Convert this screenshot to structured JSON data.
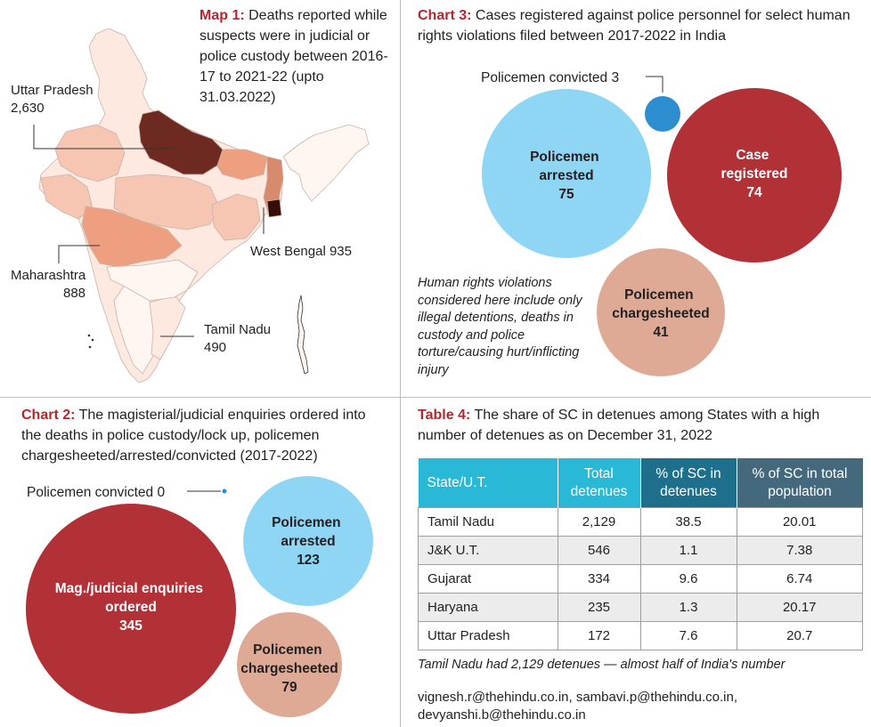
{
  "colors": {
    "accent_red": "#b5272d",
    "bubble_dark_red": "#b23137",
    "bubble_light_blue": "#8fd6f5",
    "bubble_salmon": "#deaa95",
    "bubble_blue": "#2d8ecf",
    "map_darkest": "#6e2a20",
    "map_dark": "#ee9f7f",
    "map_mid": "#f6c6b2",
    "map_light": "#fde9e0",
    "map_lightest": "#fff6f2",
    "table_header_cyan": "#29b8d6",
    "table_header_teal": "#1d6f8c",
    "table_header_slate": "#44697c"
  },
  "map1": {
    "lead": "Map 1:",
    "text": "Deaths reported while suspects were in judicial or police custody between 2016-17 to 2021-22 (upto 31.03.2022)",
    "labels": {
      "up_name": "Uttar Pradesh",
      "up_value": "2,630",
      "wb": "West Bengal 935",
      "mh_name": "Maharashtra",
      "mh_value": "888",
      "tn_name": "Tamil Nadu",
      "tn_value": "490"
    },
    "map_icon": "india-map-icon"
  },
  "chart3": {
    "lead": "Chart 3:",
    "text": "Cases registered against police personnel for select human rights violations filed between 2017-2022 in India",
    "note": "Human rights violations considered here include only illegal detentions, deaths in custody and police torture/causing hurt/inflicting injury"
  },
  "chart2": {
    "lead": "Chart 2:",
    "text": "The magisterial/judicial enquiries ordered into the deaths in police custody/lock up, policemen chargesheeted/arrested/convicted (2017-2022)"
  },
  "table4": {
    "lead": "Table 4:",
    "text": "The share of SC in detenues among States with a high number of detenues as on December 31, 2022",
    "headers": [
      "State/U.T.",
      "Total detenues",
      "% of SC in detenues",
      "% of SC in total population"
    ],
    "rows": [
      [
        "Tamil Nadu",
        "2,129",
        "38.5",
        "20.01"
      ],
      [
        "J&K U.T.",
        "546",
        "1.1",
        "7.38"
      ],
      [
        "Gujarat",
        "334",
        "9.6",
        "6.74"
      ],
      [
        "Haryana",
        "235",
        "1.3",
        "20.17"
      ],
      [
        "Uttar Pradesh",
        "172",
        "7.6",
        "20.7"
      ]
    ],
    "note": "Tamil Nadu had 2,129 detenues — almost half of India's number"
  },
  "credits": {
    "line1": "vignesh.r@thehindu.co.in, sambavi.p@thehindu.co.in,",
    "line2": "devyanshi.b@thehindu.co.in"
  },
  "chart_data": [
    {
      "type": "bubble",
      "id": "chart3",
      "series": [
        {
          "name": "Policemen convicted",
          "value": 3
        },
        {
          "name": "Policemen arrested",
          "value": 75
        },
        {
          "name": "Case registered",
          "value": 74
        },
        {
          "name": "Policemen chargesheeted",
          "value": 41
        }
      ]
    },
    {
      "type": "bubble",
      "id": "chart2",
      "series": [
        {
          "name": "Policemen convicted",
          "value": 0
        },
        {
          "name": "Mag./judicial enquiries ordered",
          "value": 345
        },
        {
          "name": "Policemen arrested",
          "value": 123
        },
        {
          "name": "Policemen chargesheeted",
          "value": 79
        }
      ]
    },
    {
      "type": "table",
      "id": "table4",
      "columns": [
        "State/U.T.",
        "Total detenues",
        "% of SC in detenues",
        "% of SC in total population"
      ],
      "rows": [
        [
          "Tamil Nadu",
          2129,
          38.5,
          20.01
        ],
        [
          "J&K U.T.",
          546,
          1.1,
          7.38
        ],
        [
          "Gujarat",
          334,
          9.6,
          6.74
        ],
        [
          "Haryana",
          235,
          1.3,
          20.17
        ],
        [
          "Uttar Pradesh",
          172,
          7.6,
          20.7
        ]
      ]
    }
  ]
}
